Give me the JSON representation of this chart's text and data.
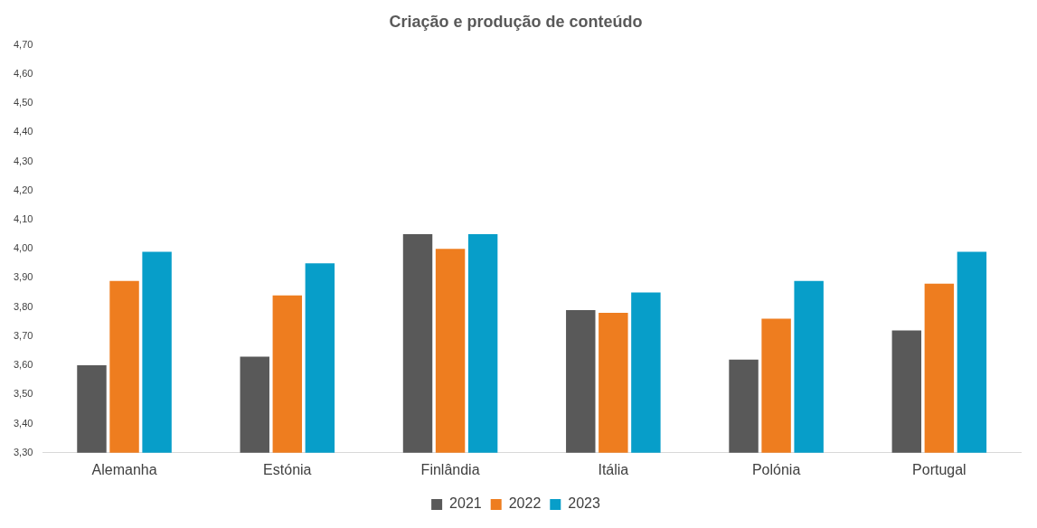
{
  "chart_data": {
    "type": "bar",
    "title": "Criação e produção de conteúdo",
    "categories": [
      "Alemanha",
      "Estónia",
      "Finlândia",
      "Itália",
      "Polónia",
      "Portugal"
    ],
    "series": [
      {
        "name": "2021",
        "color": "#595959",
        "values": [
          3.6,
          3.63,
          4.05,
          3.79,
          3.62,
          3.72
        ]
      },
      {
        "name": "2022",
        "color": "#ee7d1f",
        "values": [
          3.89,
          3.84,
          4.0,
          3.78,
          3.76,
          3.88
        ]
      },
      {
        "name": "2023",
        "color": "#079ec9",
        "values": [
          3.99,
          3.95,
          4.05,
          3.85,
          3.89,
          3.99
        ]
      }
    ],
    "ylim": [
      3.3,
      4.7
    ],
    "yticks": [
      {
        "value": 3.3,
        "label": "3,30"
      },
      {
        "value": 3.4,
        "label": "3,40"
      },
      {
        "value": 3.5,
        "label": "3,50"
      },
      {
        "value": 3.6,
        "label": "3,60"
      },
      {
        "value": 3.7,
        "label": "3,70"
      },
      {
        "value": 3.8,
        "label": "3,80"
      },
      {
        "value": 3.9,
        "label": "3,90"
      },
      {
        "value": 4.0,
        "label": "4,00"
      },
      {
        "value": 4.1,
        "label": "4,10"
      },
      {
        "value": 4.2,
        "label": "4,20"
      },
      {
        "value": 4.3,
        "label": "4,30"
      },
      {
        "value": 4.4,
        "label": "4,40"
      },
      {
        "value": 4.5,
        "label": "4,50"
      },
      {
        "value": 4.6,
        "label": "4,60"
      },
      {
        "value": 4.7,
        "label": "4,70"
      }
    ],
    "grid": false,
    "legend": "bottom"
  }
}
